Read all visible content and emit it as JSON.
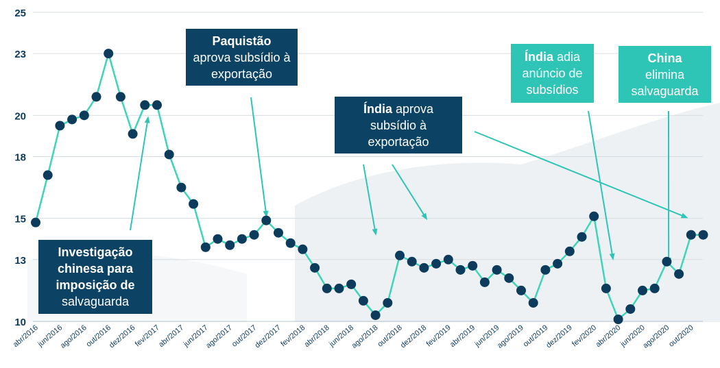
{
  "chart_data": {
    "type": "line",
    "x": [
      "abr/2016",
      "mai/2016",
      "jun/2016",
      "jul/2016",
      "ago/2016",
      "set/2016",
      "out/2016",
      "nov/2016",
      "dez/2016",
      "jan/2017",
      "fev/2017",
      "mar/2017",
      "abr/2017",
      "mai/2017",
      "jun/2017",
      "jul/2017",
      "ago/2017",
      "set/2017",
      "out/2017",
      "nov/2017",
      "dez/2017",
      "jan/2018",
      "fev/2018",
      "mar/2018",
      "abr/2018",
      "mai/2018",
      "jun/2018",
      "jul/2018",
      "ago/2018",
      "set/2018",
      "out/2018",
      "nov/2018",
      "dez/2018",
      "jan/2019",
      "fev/2019",
      "mar/2019",
      "abr/2019",
      "mai/2019",
      "jun/2019",
      "jul/2019",
      "ago/2019",
      "set/2019",
      "out/2019",
      "nov/2019",
      "dez/2019",
      "jan/2020",
      "fev/2020",
      "mar/2020",
      "abr/2020",
      "mai/2020",
      "jun/2020",
      "jul/2020",
      "ago/2020",
      "set/2020",
      "out/2020",
      "nov/2020"
    ],
    "values": [
      14.8,
      17.1,
      19.5,
      19.8,
      20.0,
      20.9,
      23.0,
      20.9,
      19.1,
      20.5,
      20.5,
      18.1,
      16.5,
      15.7,
      13.6,
      14.0,
      13.7,
      14.0,
      14.2,
      14.9,
      14.3,
      13.8,
      13.5,
      12.6,
      11.6,
      11.6,
      11.8,
      11.0,
      10.3,
      10.9,
      13.2,
      12.9,
      12.6,
      12.8,
      13.0,
      12.5,
      12.7,
      11.9,
      12.5,
      12.1,
      11.5,
      10.9,
      12.5,
      12.8,
      13.4,
      14.1,
      15.1,
      11.6,
      10.1,
      10.6,
      11.5,
      11.6,
      12.9,
      12.3,
      14.2,
      14.2
    ],
    "x_tick_labels": [
      "abr/2016",
      "jun/2016",
      "ago/2016",
      "out/2016",
      "dez/2016",
      "fev/2017",
      "abr/2017",
      "jun/2017",
      "ago/2017",
      "out/2017",
      "dez/2017",
      "fev/2018",
      "abr/2018",
      "jun/2018",
      "ago/2018",
      "out/2018",
      "dez/2018",
      "fev/2019",
      "abr/2019",
      "jun/2019",
      "ago/2019",
      "out/2019",
      "dez/2019",
      "fev/2020",
      "abr/2020",
      "jun/2020",
      "ago/2020",
      "out/2020"
    ],
    "y_tick_labels": [
      "10",
      "13",
      "15",
      "18",
      "20",
      "23",
      "25"
    ],
    "ylim": [
      10,
      25
    ],
    "grid": true,
    "title": "",
    "xlabel": "",
    "ylabel": "",
    "line_color": "#3dd4b8",
    "marker_color": "#0c3b5c"
  },
  "annotations": [
    {
      "id": "investigacao",
      "style": "navy",
      "bold": "Investigação chinesa para imposição de",
      "text": "salvaguarda",
      "target": "dez/2016"
    },
    {
      "id": "paquistao",
      "style": "navy",
      "bold": "Paquistão",
      "text": "aprova subsídio à exportação",
      "target": "nov/2017"
    },
    {
      "id": "india1",
      "style": "navy",
      "bold": "Índia",
      "text": "aprova subsídio à exportação",
      "target": "ago/2018"
    },
    {
      "id": "india2",
      "style": "teal",
      "bold": "Índia",
      "text": "adia anúncio de subsídios",
      "target": "abr/2020"
    },
    {
      "id": "china",
      "style": "teal",
      "bold": "China",
      "text": "elimina salvaguarda",
      "target": "set/2020"
    }
  ],
  "colors": {
    "navy": "#0c4263",
    "teal": "#2ec4b6",
    "arrow": "#2ec4b6",
    "grid": "#d6dde2",
    "axis_text": "#0c3b5c"
  }
}
